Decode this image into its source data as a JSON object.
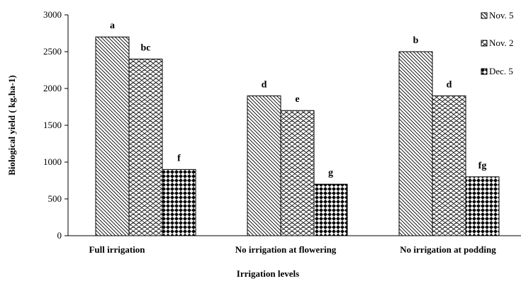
{
  "chart_data": {
    "type": "bar",
    "xlabel": "Irrigation levels",
    "ylabel": "Biological yield ( kg.ha-1)",
    "ylim": [
      0,
      3000
    ],
    "yticks": [
      0,
      500,
      1000,
      1500,
      2000,
      2500,
      3000
    ],
    "categories": [
      "Full irrigation",
      "No irrigation  at flowering",
      "No irrigation  at podding"
    ],
    "series": [
      {
        "name": "Nov. 5",
        "pattern": "diagonal-hatch",
        "values": [
          2700,
          1900,
          2500
        ],
        "labels": [
          "a",
          "d",
          "b"
        ]
      },
      {
        "name": "Nov. 2",
        "pattern": "scale-pattern",
        "values": [
          2400,
          1700,
          1900
        ],
        "labels": [
          "bc",
          "e",
          "d"
        ]
      },
      {
        "name": "Dec. 5",
        "pattern": "checker-pattern",
        "values": [
          900,
          700,
          800
        ],
        "labels": [
          "f",
          "g",
          "fg"
        ]
      }
    ],
    "legend_position": "right",
    "grid": false
  }
}
